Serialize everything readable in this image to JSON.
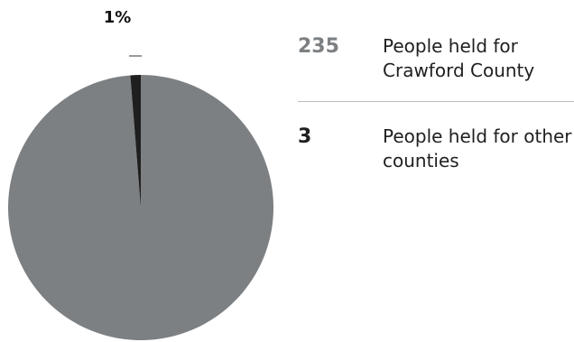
{
  "chart_data": {
    "type": "pie",
    "title": "",
    "slices": [
      {
        "value": 235,
        "label": "People held for Crawford County",
        "color": "#7d8083"
      },
      {
        "value": 3,
        "label": "People held for other counties",
        "color": "#1f1f1f"
      }
    ],
    "data_labels": {
      "small_slice_percent": "1%"
    },
    "legend": {
      "placement": "right",
      "items": [
        {
          "value": "235",
          "label": "People held for Crawford County",
          "color": "#7d8083"
        },
        {
          "value": "3",
          "label": "People held for other counties",
          "color": "#1f1f1f"
        }
      ]
    }
  }
}
